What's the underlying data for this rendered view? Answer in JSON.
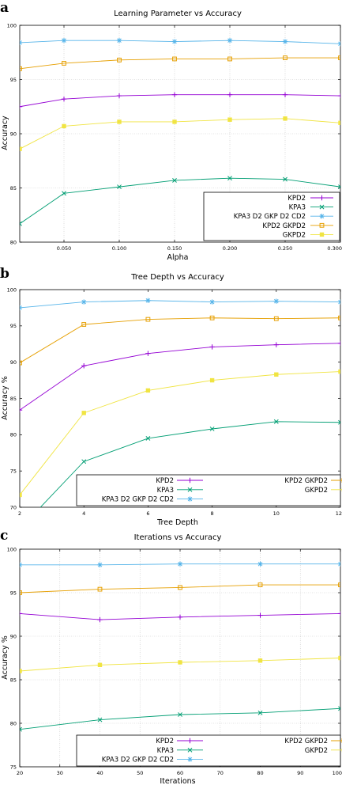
{
  "colors": {
    "KPD2": "#9400d3",
    "KPA3": "#009e73",
    "KPA3 D2 GKP D2 CD2": "#56b4e9",
    "KPD2 GKPD2": "#e69f00",
    "GKPD2": "#f0e442"
  },
  "chart_data": [
    {
      "panel": "a",
      "type": "line",
      "title": "Learning Parameter vs Accuracy",
      "xlabel": "Alpha",
      "ylabel": "Accuracy",
      "xlim": [
        0.01,
        0.3
      ],
      "ylim": [
        80,
        100
      ],
      "xticks": [
        0.05,
        0.1,
        0.15,
        0.2,
        0.25,
        0.3
      ],
      "xtick_labels": [
        "0.050",
        "0.100",
        "0.150",
        "0.200",
        "0.250",
        "0.300"
      ],
      "yticks": [
        80,
        85,
        90,
        95,
        100
      ],
      "ytick_labels": [
        "80",
        "85",
        "90",
        "95",
        "100"
      ],
      "grid": true,
      "legend_position": "bottom-right",
      "legend_columns": 1,
      "x": [
        0.01,
        0.05,
        0.1,
        0.15,
        0.2,
        0.25,
        0.3
      ],
      "series": [
        {
          "name": "KPD2",
          "marker": "plus",
          "values": [
            92.5,
            93.2,
            93.5,
            93.6,
            93.6,
            93.6,
            93.5
          ]
        },
        {
          "name": "KPA3",
          "marker": "x",
          "values": [
            81.7,
            84.5,
            85.1,
            85.7,
            85.9,
            85.8,
            85.1
          ]
        },
        {
          "name": "KPA3 D2 GKP D2 CD2",
          "marker": "star",
          "values": [
            98.4,
            98.6,
            98.6,
            98.5,
            98.6,
            98.5,
            98.3
          ]
        },
        {
          "name": "KPD2 GKPD2",
          "marker": "square-open",
          "values": [
            96.0,
            96.5,
            96.8,
            96.9,
            96.9,
            97.0,
            97.0
          ]
        },
        {
          "name": "GKPD2",
          "marker": "square-filled",
          "values": [
            88.6,
            90.7,
            91.1,
            91.1,
            91.3,
            91.4,
            91.0
          ]
        }
      ]
    },
    {
      "panel": "b",
      "type": "line",
      "title": "Tree Depth vs Accuracy",
      "xlabel": "Tree Depth",
      "ylabel": "Accuracy %",
      "xlim": [
        2,
        12
      ],
      "ylim": [
        70,
        100
      ],
      "xticks": [
        2,
        4,
        6,
        8,
        10,
        12
      ],
      "xtick_labels": [
        "2",
        "4",
        "6",
        "8",
        "10",
        "12"
      ],
      "yticks": [
        70,
        75,
        80,
        85,
        90,
        95,
        100
      ],
      "ytick_labels": [
        "70",
        "75",
        "80",
        "85",
        "90",
        "95",
        "100"
      ],
      "grid": false,
      "legend_position": "bottom-right",
      "legend_columns": 2,
      "x": [
        2,
        4,
        6,
        8,
        10,
        12
      ],
      "series": [
        {
          "name": "KPD2",
          "marker": "plus",
          "values": [
            83.4,
            89.5,
            91.2,
            92.1,
            92.4,
            92.6
          ]
        },
        {
          "name": "KPA3",
          "marker": "x",
          "values": [
            67.0,
            76.3,
            79.5,
            80.8,
            81.8,
            81.7
          ]
        },
        {
          "name": "KPA3 D2 GKP D2 CD2",
          "marker": "star",
          "values": [
            97.5,
            98.3,
            98.5,
            98.3,
            98.4,
            98.3
          ]
        },
        {
          "name": "KPD2 GKPD2",
          "marker": "square-open",
          "values": [
            89.9,
            95.2,
            95.9,
            96.1,
            96.0,
            96.1
          ]
        },
        {
          "name": "GKPD2",
          "marker": "square-filled",
          "values": [
            71.7,
            83.0,
            86.1,
            87.5,
            88.3,
            88.7
          ]
        }
      ]
    },
    {
      "panel": "c",
      "type": "line",
      "title": "Iterations vs Accuracy",
      "xlabel": "Iterations",
      "ylabel": "Accuracy %",
      "xlim": [
        20,
        100
      ],
      "ylim": [
        75,
        100
      ],
      "xticks": [
        20,
        30,
        40,
        50,
        60,
        70,
        80,
        90,
        100
      ],
      "xtick_labels": [
        "20",
        "30",
        "40",
        "50",
        "60",
        "70",
        "80",
        "90",
        "100"
      ],
      "yticks": [
        75,
        80,
        85,
        90,
        95,
        100
      ],
      "ytick_labels": [
        "75",
        "80",
        "85",
        "90",
        "95",
        "100"
      ],
      "grid": true,
      "legend_position": "bottom-right",
      "legend_columns": 2,
      "x": [
        20,
        40,
        60,
        80,
        100
      ],
      "series": [
        {
          "name": "KPD2",
          "marker": "plus",
          "values": [
            92.6,
            91.9,
            92.2,
            92.4,
            92.6
          ]
        },
        {
          "name": "KPA3",
          "marker": "x",
          "values": [
            79.3,
            80.4,
            81.0,
            81.2,
            81.7
          ]
        },
        {
          "name": "KPA3 D2 GKP D2 CD2",
          "marker": "star",
          "values": [
            98.2,
            98.2,
            98.3,
            98.3,
            98.3
          ]
        },
        {
          "name": "KPD2 GKPD2",
          "marker": "square-open",
          "values": [
            95.0,
            95.4,
            95.6,
            95.9,
            95.9
          ]
        },
        {
          "name": "GKPD2",
          "marker": "square-filled",
          "values": [
            86.0,
            86.7,
            87.0,
            87.2,
            87.5
          ]
        }
      ]
    }
  ]
}
